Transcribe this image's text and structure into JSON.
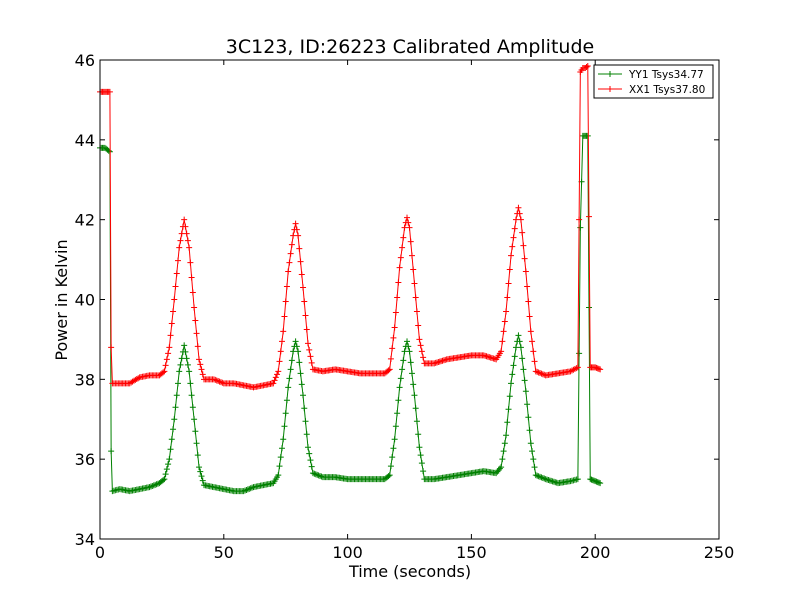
{
  "chart_data": {
    "type": "line",
    "title": "3C123, ID:26223 Calibrated Amplitude",
    "xlabel": "Time (seconds)",
    "ylabel": "Power in Kelvin",
    "xlim": [
      0,
      250
    ],
    "ylim": [
      34,
      46
    ],
    "xticks": [
      0,
      50,
      100,
      150,
      200,
      250
    ],
    "yticks": [
      34,
      36,
      38,
      40,
      42,
      44,
      46
    ],
    "grid": false,
    "legend_position": "top-right",
    "marker": "plus",
    "series": [
      {
        "name": "YY1 Tsys34.77",
        "color": "#008000",
        "points": [
          [
            0,
            43.8
          ],
          [
            1,
            43.8
          ],
          [
            2,
            43.8
          ],
          [
            3,
            43.75
          ],
          [
            4,
            43.7
          ],
          [
            4.5,
            36.2
          ],
          [
            5,
            35.2
          ],
          [
            8,
            35.25
          ],
          [
            12,
            35.2
          ],
          [
            16,
            35.25
          ],
          [
            20,
            35.3
          ],
          [
            24,
            35.4
          ],
          [
            26,
            35.5
          ],
          [
            28,
            36.0
          ],
          [
            30,
            37.0
          ],
          [
            32,
            38.2
          ],
          [
            34,
            38.85
          ],
          [
            36,
            38.2
          ],
          [
            38,
            37.0
          ],
          [
            40,
            35.8
          ],
          [
            42,
            35.35
          ],
          [
            46,
            35.3
          ],
          [
            50,
            35.25
          ],
          [
            54,
            35.2
          ],
          [
            58,
            35.2
          ],
          [
            62,
            35.3
          ],
          [
            66,
            35.35
          ],
          [
            70,
            35.4
          ],
          [
            72,
            35.6
          ],
          [
            74,
            36.5
          ],
          [
            76,
            37.8
          ],
          [
            78,
            38.7
          ],
          [
            79,
            38.95
          ],
          [
            80,
            38.7
          ],
          [
            82,
            37.6
          ],
          [
            84,
            36.3
          ],
          [
            86,
            35.65
          ],
          [
            90,
            35.55
          ],
          [
            95,
            35.55
          ],
          [
            100,
            35.5
          ],
          [
            105,
            35.5
          ],
          [
            110,
            35.5
          ],
          [
            115,
            35.5
          ],
          [
            117,
            35.6
          ],
          [
            119,
            36.5
          ],
          [
            121,
            37.8
          ],
          [
            123,
            38.7
          ],
          [
            124,
            38.95
          ],
          [
            125,
            38.7
          ],
          [
            127,
            37.6
          ],
          [
            129,
            36.3
          ],
          [
            131,
            35.5
          ],
          [
            135,
            35.5
          ],
          [
            140,
            35.55
          ],
          [
            145,
            35.6
          ],
          [
            150,
            35.65
          ],
          [
            155,
            35.7
          ],
          [
            160,
            35.65
          ],
          [
            162,
            35.8
          ],
          [
            164,
            36.6
          ],
          [
            166,
            37.9
          ],
          [
            168,
            38.8
          ],
          [
            169,
            39.1
          ],
          [
            170,
            38.8
          ],
          [
            172,
            37.7
          ],
          [
            174,
            36.4
          ],
          [
            176,
            35.6
          ],
          [
            180,
            35.5
          ],
          [
            185,
            35.4
          ],
          [
            190,
            35.45
          ],
          [
            193,
            35.5
          ],
          [
            194,
            41.8
          ],
          [
            195,
            44.1
          ],
          [
            196,
            44.1
          ],
          [
            197,
            44.1
          ],
          [
            198,
            35.5
          ],
          [
            200,
            35.45
          ],
          [
            202,
            35.4
          ]
        ]
      },
      {
        "name": "XX1 Tsys37.80",
        "color": "#ff0000",
        "points": [
          [
            0,
            45.2
          ],
          [
            1,
            45.2
          ],
          [
            2,
            45.2
          ],
          [
            3,
            45.2
          ],
          [
            4,
            45.2
          ],
          [
            4.5,
            38.8
          ],
          [
            5,
            37.9
          ],
          [
            8,
            37.9
          ],
          [
            12,
            37.9
          ],
          [
            16,
            38.05
          ],
          [
            20,
            38.1
          ],
          [
            24,
            38.1
          ],
          [
            26,
            38.2
          ],
          [
            28,
            38.8
          ],
          [
            30,
            40.0
          ],
          [
            32,
            41.3
          ],
          [
            34,
            42.0
          ],
          [
            36,
            41.3
          ],
          [
            38,
            39.8
          ],
          [
            40,
            38.5
          ],
          [
            42,
            38.0
          ],
          [
            46,
            38.0
          ],
          [
            50,
            37.9
          ],
          [
            54,
            37.9
          ],
          [
            58,
            37.85
          ],
          [
            62,
            37.8
          ],
          [
            66,
            37.85
          ],
          [
            70,
            37.9
          ],
          [
            72,
            38.2
          ],
          [
            74,
            39.2
          ],
          [
            76,
            40.7
          ],
          [
            78,
            41.6
          ],
          [
            79,
            41.9
          ],
          [
            80,
            41.6
          ],
          [
            82,
            40.3
          ],
          [
            84,
            38.9
          ],
          [
            86,
            38.25
          ],
          [
            90,
            38.2
          ],
          [
            95,
            38.25
          ],
          [
            100,
            38.2
          ],
          [
            105,
            38.15
          ],
          [
            110,
            38.15
          ],
          [
            115,
            38.15
          ],
          [
            117,
            38.25
          ],
          [
            119,
            39.3
          ],
          [
            121,
            40.8
          ],
          [
            123,
            41.8
          ],
          [
            124,
            42.05
          ],
          [
            125,
            41.8
          ],
          [
            127,
            40.4
          ],
          [
            129,
            39.0
          ],
          [
            131,
            38.4
          ],
          [
            135,
            38.4
          ],
          [
            140,
            38.5
          ],
          [
            145,
            38.55
          ],
          [
            150,
            38.6
          ],
          [
            155,
            38.6
          ],
          [
            160,
            38.5
          ],
          [
            162,
            38.7
          ],
          [
            164,
            39.7
          ],
          [
            166,
            41.1
          ],
          [
            168,
            42.0
          ],
          [
            169,
            42.3
          ],
          [
            170,
            42.0
          ],
          [
            172,
            40.7
          ],
          [
            174,
            39.2
          ],
          [
            176,
            38.2
          ],
          [
            180,
            38.1
          ],
          [
            185,
            38.15
          ],
          [
            190,
            38.2
          ],
          [
            193,
            38.3
          ],
          [
            194,
            45.7
          ],
          [
            195,
            45.8
          ],
          [
            196,
            45.8
          ],
          [
            197,
            45.85
          ],
          [
            198,
            38.3
          ],
          [
            200,
            38.3
          ],
          [
            202,
            38.25
          ]
        ]
      }
    ]
  }
}
